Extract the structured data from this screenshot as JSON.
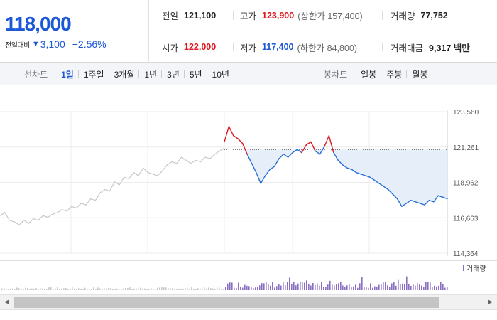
{
  "quote": {
    "price": "118,000",
    "change_label": "전일대비",
    "change_arrow": "▼",
    "change_value": "3,100",
    "change_pct": "−2.56%",
    "prev": {
      "label": "전일",
      "value": "121,100"
    },
    "high": {
      "label": "고가",
      "value": "123,900",
      "limit": "(상한가 157,400)"
    },
    "volume": {
      "label": "거래량",
      "value": "77,752"
    },
    "open": {
      "label": "시가",
      "value": "122,000"
    },
    "low": {
      "label": "저가",
      "value": "117,400",
      "limit": "(하한가 84,800)"
    },
    "amount": {
      "label": "거래대금",
      "value": "9,317 백만"
    }
  },
  "toolbar": {
    "line_label": "선차트",
    "line_periods": [
      "1일",
      "1주일",
      "3개월",
      "1년",
      "3년",
      "5년",
      "10년"
    ],
    "active_period": "1일",
    "candle_label": "봉차트",
    "candle_periods": [
      "일봉",
      "주봉",
      "월봉"
    ]
  },
  "chart_data": {
    "type": "line",
    "yticks": [
      "123,560",
      "121,261",
      "118,962",
      "116,663",
      "114,364"
    ],
    "ylim": [
      114364,
      123560
    ],
    "prev_close": 121100,
    "volume_legend": "거래량",
    "colors": {
      "up": "#e0161e",
      "down": "#2a6fd6",
      "prev_day": "#c7c7c7",
      "fill": "#e6eefa"
    },
    "prev_day_series": [
      116800,
      117000,
      116500,
      116400,
      116200,
      116500,
      116300,
      116600,
      116500,
      116800,
      116700,
      116900,
      117000,
      117200,
      117100,
      117400,
      117300,
      117600,
      117500,
      117900,
      117800,
      118300,
      118500,
      118400,
      119000,
      118800,
      119300,
      119200,
      119600,
      119400,
      119900,
      119600,
      119500,
      119400,
      119700,
      120100,
      120300,
      120200,
      120600,
      120400,
      120200,
      120400,
      120300,
      120600,
      120500,
      120800,
      121000,
      121200
    ],
    "today_series": [
      121600,
      122600,
      122000,
      121800,
      121500,
      120800,
      120200,
      119600,
      118900,
      119400,
      119800,
      120000,
      120500,
      120800,
      120600,
      120900,
      121100,
      120900,
      121400,
      121600,
      121000,
      120800,
      121300,
      122000,
      120900,
      120400,
      120100,
      119900,
      119800,
      119600,
      119500,
      119400,
      119300,
      119100,
      118900,
      118700,
      118500,
      118200,
      117900,
      117400,
      117600,
      117800,
      117700,
      117600,
      117500,
      117800,
      117700,
      118100,
      118000,
      117900
    ]
  }
}
